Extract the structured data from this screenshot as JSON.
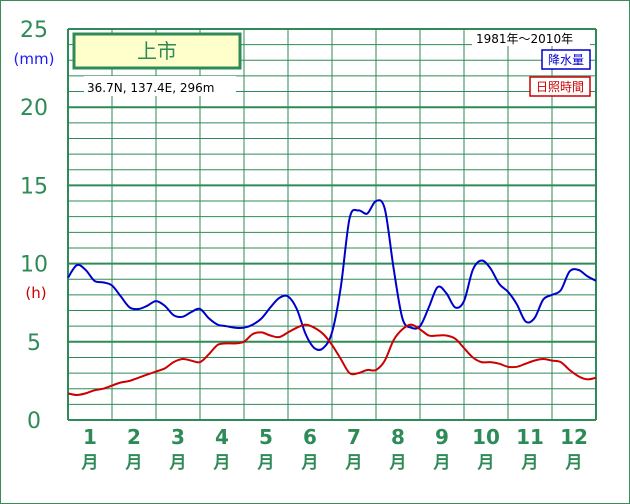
{
  "chart_data": {
    "type": "line",
    "title": "上市",
    "period": "1981年～2010年",
    "location": "36.7N,  137.4E,  296m",
    "units": {
      "precip": "(mm)",
      "sunshine": "(h)"
    },
    "yticks": [
      0,
      5,
      10,
      15,
      20,
      25
    ],
    "ylim": [
      0,
      25
    ],
    "months": [
      {
        "num": "1",
        "suffix": "月"
      },
      {
        "num": "2",
        "suffix": "月"
      },
      {
        "num": "3",
        "suffix": "月"
      },
      {
        "num": "4",
        "suffix": "月"
      },
      {
        "num": "5",
        "suffix": "月"
      },
      {
        "num": "6",
        "suffix": "月"
      },
      {
        "num": "7",
        "suffix": "月"
      },
      {
        "num": "8",
        "suffix": "月"
      },
      {
        "num": "9",
        "suffix": "月"
      },
      {
        "num": "10",
        "suffix": "月"
      },
      {
        "num": "11",
        "suffix": "月"
      },
      {
        "num": "12",
        "suffix": "月"
      }
    ],
    "x": [
      0.0,
      0.2,
      0.4,
      0.6,
      0.8,
      1.0,
      1.2,
      1.4,
      1.6,
      1.8,
      2.0,
      2.2,
      2.4,
      2.6,
      2.8,
      3.0,
      3.2,
      3.4,
      3.6,
      3.8,
      4.0,
      4.2,
      4.4,
      4.6,
      4.8,
      5.0,
      5.2,
      5.4,
      5.6,
      5.8,
      6.0,
      6.2,
      6.4,
      6.6,
      6.8,
      7.0,
      7.2,
      7.4,
      7.6,
      7.8,
      8.0,
      8.2,
      8.4,
      8.6,
      8.8,
      9.0,
      9.2,
      9.4,
      9.6,
      9.8,
      10.0,
      10.2,
      10.4,
      10.6,
      10.8,
      11.0,
      11.2,
      11.4,
      11.6,
      11.8,
      12.0
    ],
    "series": [
      {
        "name": "降水量",
        "color": "#0000cc",
        "values": [
          9.1,
          9.9,
          9.6,
          8.9,
          8.8,
          8.6,
          7.9,
          7.2,
          7.1,
          7.3,
          7.6,
          7.3,
          6.7,
          6.6,
          6.9,
          7.1,
          6.5,
          6.1,
          6.0,
          5.9,
          5.9,
          6.1,
          6.5,
          7.2,
          7.8,
          7.9,
          7.1,
          5.5,
          4.6,
          4.6,
          5.6,
          8.5,
          12.9,
          13.4,
          13.2,
          14.0,
          13.5,
          9.7,
          6.5,
          5.9,
          6.0,
          7.2,
          8.5,
          8.1,
          7.2,
          7.6,
          9.6,
          10.2,
          9.7,
          8.7,
          8.2,
          7.4,
          6.3,
          6.5,
          7.7,
          8.0,
          8.3,
          9.5,
          9.6,
          9.2,
          8.9
        ]
      },
      {
        "name": "日照時間",
        "color": "#cc0000",
        "values": [
          1.7,
          1.6,
          1.7,
          1.9,
          2.0,
          2.2,
          2.4,
          2.5,
          2.7,
          2.9,
          3.1,
          3.3,
          3.7,
          3.9,
          3.8,
          3.7,
          4.2,
          4.8,
          4.9,
          4.9,
          5.0,
          5.5,
          5.6,
          5.4,
          5.3,
          5.6,
          5.9,
          6.1,
          5.9,
          5.5,
          4.8,
          3.9,
          3.0,
          3.0,
          3.2,
          3.2,
          3.8,
          5.1,
          5.8,
          6.1,
          5.8,
          5.4,
          5.4,
          5.4,
          5.2,
          4.6,
          4.0,
          3.7,
          3.7,
          3.6,
          3.4,
          3.4,
          3.6,
          3.8,
          3.9,
          3.8,
          3.7,
          3.2,
          2.8,
          2.6,
          2.7
        ]
      }
    ],
    "legend": [
      {
        "label": "降水量",
        "color": "#0000cc"
      },
      {
        "label": "日照時間",
        "color": "#cc0000"
      }
    ],
    "grid": true,
    "colors": {
      "axis": "#2e8b57",
      "grid": "#2e8b57",
      "title_box_fill": "#ffffcc"
    }
  }
}
